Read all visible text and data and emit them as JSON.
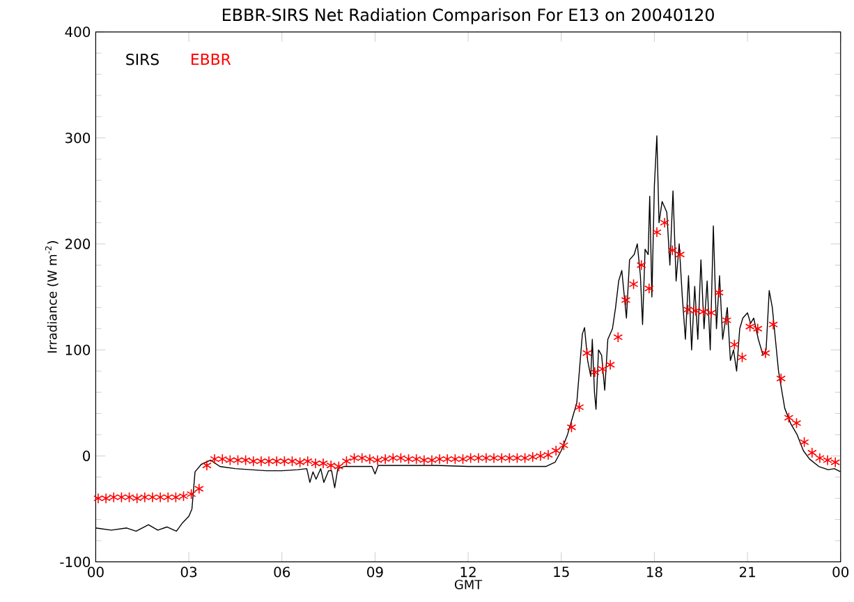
{
  "chart_data": {
    "type": "line",
    "title": "EBBR-SIRS Net Radiation Comparison For E13 on 20040120",
    "xlabel": "GMT",
    "ylabel": "Irradiance (W m$^{-2}$)",
    "xlim": [
      0,
      24
    ],
    "ylim": [
      -100,
      400
    ],
    "xticks": [
      {
        "value": 0,
        "label": "00"
      },
      {
        "value": 3,
        "label": "03"
      },
      {
        "value": 6,
        "label": "06"
      },
      {
        "value": 9,
        "label": "09"
      },
      {
        "value": 12,
        "label": "12"
      },
      {
        "value": 15,
        "label": "15"
      },
      {
        "value": 18,
        "label": "18"
      },
      {
        "value": 21,
        "label": "21"
      },
      {
        "value": 24,
        "label": "00"
      }
    ],
    "yticks": [
      -100,
      0,
      100,
      200,
      300,
      400
    ],
    "grid": false,
    "legend": "top left",
    "series": [
      {
        "name": "SIRS",
        "color": "#000000",
        "marker": "none",
        "line_style": "solid",
        "x": [
          0,
          0.5,
          1,
          1.3,
          1.7,
          2.0,
          2.3,
          2.6,
          2.8,
          3.0,
          3.1,
          3.2,
          3.4,
          3.7,
          4.0,
          4.5,
          5,
          5.5,
          6,
          6.5,
          6.8,
          6.9,
          7.0,
          7.1,
          7.25,
          7.35,
          7.5,
          7.6,
          7.7,
          7.8,
          8,
          8.5,
          8.9,
          9.0,
          9.1,
          10,
          11,
          12,
          13,
          14,
          14.5,
          14.8,
          15.0,
          15.2,
          15.4,
          15.5,
          15.68,
          15.75,
          15.85,
          15.95,
          16.0,
          16.07,
          16.12,
          16.2,
          16.3,
          16.4,
          16.5,
          16.65,
          16.75,
          16.85,
          16.95,
          17.1,
          17.2,
          17.35,
          17.45,
          17.55,
          17.62,
          17.7,
          17.8,
          17.85,
          17.92,
          18.0,
          18.08,
          18.15,
          18.25,
          18.4,
          18.5,
          18.6,
          18.7,
          18.8,
          18.9,
          19.0,
          19.1,
          19.2,
          19.3,
          19.4,
          19.5,
          19.6,
          19.7,
          19.8,
          19.9,
          20.0,
          20.1,
          20.2,
          20.35,
          20.45,
          20.55,
          20.65,
          20.75,
          20.85,
          21.0,
          21.1,
          21.2,
          21.35,
          21.5,
          21.6,
          21.7,
          21.8,
          21.9,
          22.0,
          22.2,
          22.4,
          22.6,
          22.8,
          23.0,
          23.3,
          23.6,
          23.8,
          24
        ],
        "values": [
          -68,
          -70,
          -68,
          -71,
          -65,
          -70,
          -67,
          -71,
          -63,
          -57,
          -50,
          -15,
          -8,
          -4,
          -10,
          -12,
          -13,
          -14,
          -14,
          -13,
          -12,
          -25,
          -15,
          -22,
          -12,
          -25,
          -14,
          -14,
          -30,
          -12,
          -10,
          -10,
          -10,
          -17,
          -9,
          -9,
          -9,
          -10,
          -10,
          -10,
          -10,
          -6,
          5,
          20,
          40,
          50,
          115,
          121,
          90,
          75,
          110,
          60,
          44,
          100,
          95,
          62,
          110,
          120,
          140,
          165,
          175,
          130,
          185,
          190,
          200,
          170,
          124,
          195,
          190,
          245,
          150,
          255,
          302,
          220,
          240,
          230,
          180,
          250,
          165,
          200,
          150,
          110,
          170,
          100,
          160,
          110,
          185,
          120,
          165,
          100,
          217,
          120,
          170,
          110,
          140,
          90,
          100,
          80,
          120,
          130,
          135,
          125,
          130,
          110,
          95,
          100,
          156,
          140,
          110,
          80,
          45,
          30,
          20,
          5,
          -3,
          -10,
          -13,
          -12,
          -15
        ]
      },
      {
        "name": "EBBR",
        "type": "scatter",
        "color": "#ff0000",
        "marker": "cross",
        "x": [
          0.08,
          0.33,
          0.58,
          0.83,
          1.08,
          1.33,
          1.58,
          1.83,
          2.08,
          2.33,
          2.58,
          2.83,
          3.08,
          3.33,
          3.58,
          3.83,
          4.08,
          4.33,
          4.58,
          4.83,
          5.08,
          5.33,
          5.58,
          5.83,
          6.08,
          6.33,
          6.58,
          6.83,
          7.08,
          7.33,
          7.58,
          7.83,
          8.08,
          8.33,
          8.58,
          8.83,
          9.08,
          9.33,
          9.58,
          9.83,
          10.08,
          10.33,
          10.58,
          10.83,
          11.08,
          11.33,
          11.58,
          11.83,
          12.08,
          12.33,
          12.58,
          12.83,
          13.08,
          13.33,
          13.58,
          13.83,
          14.08,
          14.33,
          14.58,
          14.83,
          15.08,
          15.33,
          15.58,
          15.83,
          16.08,
          16.33,
          16.58,
          16.83,
          17.08,
          17.33,
          17.58,
          17.83,
          18.08,
          18.33,
          18.58,
          18.83,
          19.08,
          19.33,
          19.58,
          19.83,
          20.08,
          20.33,
          20.58,
          20.83,
          21.08,
          21.33,
          21.58,
          21.83,
          22.08,
          22.33,
          22.58,
          22.83,
          23.08,
          23.33,
          23.58,
          23.83
        ],
        "values": [
          -40,
          -40,
          -39,
          -39,
          -39,
          -40,
          -39,
          -39,
          -39,
          -39,
          -39,
          -38,
          -36,
          -31,
          -9,
          -3,
          -3,
          -4,
          -4,
          -4,
          -5,
          -5,
          -5,
          -5,
          -5,
          -5,
          -6,
          -5,
          -7,
          -7,
          -9,
          -10,
          -5,
          -2,
          -2,
          -3,
          -4,
          -3,
          -2,
          -2,
          -3,
          -3,
          -4,
          -4,
          -3,
          -3,
          -3,
          -3,
          -2,
          -2,
          -2,
          -2,
          -2,
          -2,
          -2,
          -2,
          -1,
          0,
          1,
          5,
          10,
          27,
          46,
          97,
          79,
          82,
          86,
          112,
          147,
          162,
          180,
          158,
          211,
          220,
          194,
          190,
          138,
          137,
          136,
          135,
          154,
          128,
          105,
          93,
          122,
          120,
          97,
          124,
          73,
          36,
          31,
          13,
          3,
          -2,
          -4,
          -6
        ]
      }
    ]
  }
}
